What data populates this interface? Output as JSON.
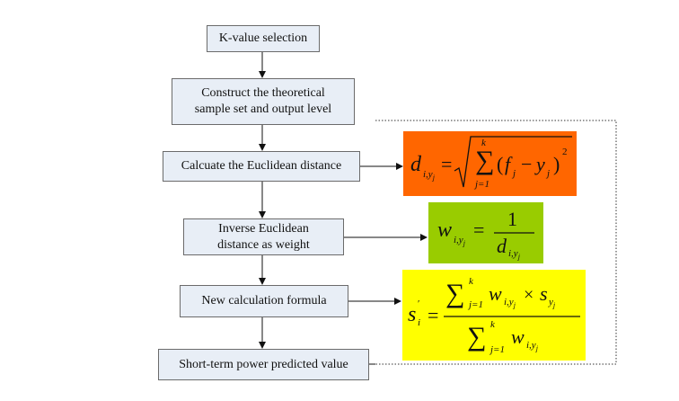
{
  "steps": [
    {
      "id": "k-value",
      "lines": [
        "K-value selection"
      ]
    },
    {
      "id": "construct",
      "lines": [
        "Construct the theoretical",
        "sample set and output level"
      ]
    },
    {
      "id": "euclidean",
      "lines": [
        "Calcuate the Euclidean distance"
      ]
    },
    {
      "id": "inverse",
      "lines": [
        "Inverse Euclidean",
        "distance as weight"
      ]
    },
    {
      "id": "formula",
      "lines": [
        "New calculation formula"
      ]
    },
    {
      "id": "predicted",
      "lines": [
        "Short-term power predicted value"
      ]
    }
  ],
  "formulas": {
    "distance": {
      "color": "#ff6600"
    },
    "weight": {
      "color": "#99cc00"
    },
    "prediction": {
      "color": "#ffff00"
    }
  }
}
